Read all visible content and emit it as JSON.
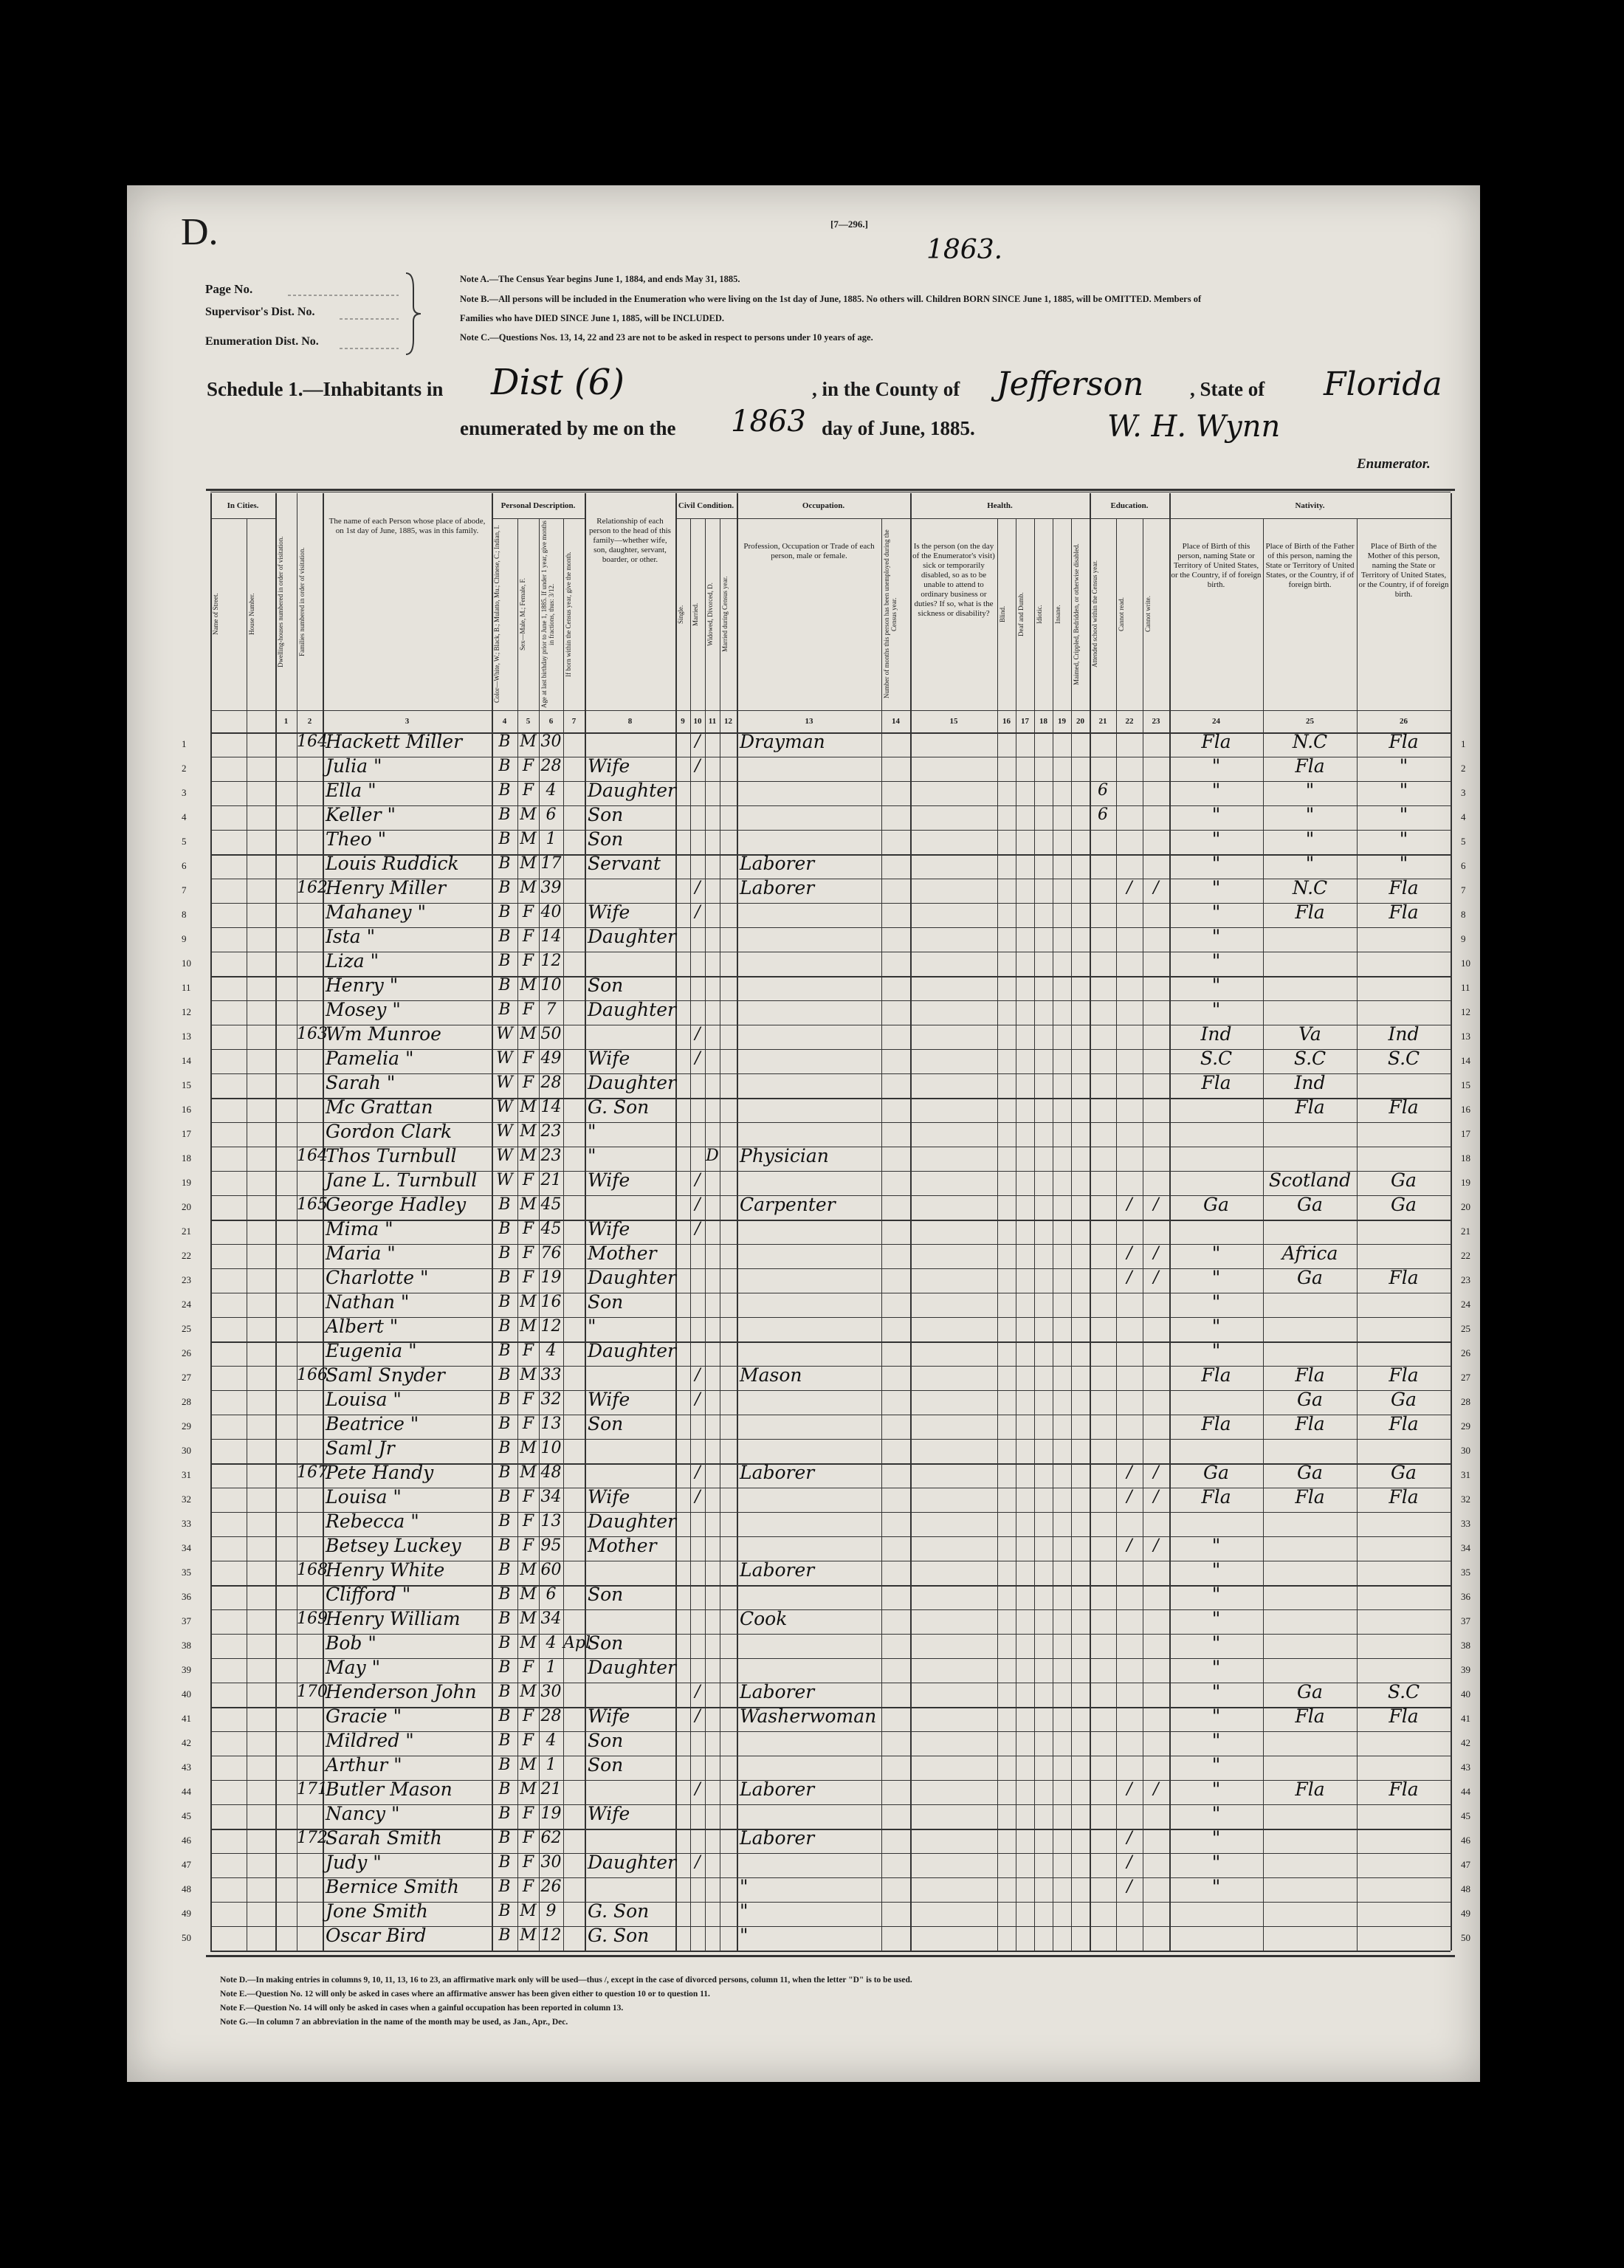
{
  "header": {
    "schedule_letter": "D.",
    "form_number": "[7—296.]",
    "handwritten_number": "1863.",
    "page_no": "Page No.",
    "supervisor_dist": "Supervisor's Dist. No.",
    "enumeration_dist": "Enumeration Dist. No.",
    "notes": [
      "Note A.—The Census Year begins June 1, 1884, and ends May 31, 1885.",
      "Note B.—All persons will be included in the Enumeration who were living on the 1st day of June, 1885. No others will. Children BORN SINCE June 1, 1885, will be OMITTED. Members of Families who have DIED SINCE June 1, 1885, will be INCLUDED.",
      "Note C.—Questions Nos. 13, 14, 22 and 23 are not to be asked in respect to persons under 10 years of age."
    ]
  },
  "schedule": {
    "label": "Schedule 1.—Inhabitants in",
    "district": "Dist (6)",
    "county_label": ", in the County of",
    "county": "Jefferson",
    "state_label": ", State of",
    "state": "Florida",
    "enumerated_label": "enumerated by me on the",
    "day": "1863",
    "month_label": "day of June, 1885.",
    "enumerator_signature": "W. H. Wynn",
    "enumerator_label": "Enumerator."
  },
  "table": {
    "groups": [
      {
        "label": "In Cities."
      },
      {
        "label": "Personal Description."
      },
      {
        "label": "Civil Condition."
      },
      {
        "label": "Occupation."
      },
      {
        "label": "Health."
      },
      {
        "label": "Education."
      },
      {
        "label": "Nativity."
      }
    ],
    "columns": [
      {
        "header": "Name of Street."
      },
      {
        "header": "House Number."
      },
      {
        "number": "1",
        "header": "Dwelling-houses numbered in order of visitation."
      },
      {
        "number": "2",
        "header": "Families numbered in order of visitation."
      },
      {
        "number": "3",
        "header": "The name of each Person whose place of abode, on 1st day of June, 1885, was in this family."
      },
      {
        "number": "4",
        "header": "Color—White, W.; Black, B.; Mulatto, Mu.; Chinese, C.; Indian, I."
      },
      {
        "number": "5",
        "header": "Sex—Male, M.; Female, F."
      },
      {
        "number": "6",
        "header": "Age at last birthday prior to June 1, 1885. If under 1 year, give months in fractions, thus: 3/12."
      },
      {
        "number": "7",
        "header": "If born within the Census year, give the month."
      },
      {
        "number": "8",
        "header": "Relationship of each person to the head of this family—whether wife, son, daughter, servant, boarder, or other."
      },
      {
        "number": "9",
        "header": "Single."
      },
      {
        "number": "10",
        "header": "Married."
      },
      {
        "number": "11",
        "header": "Widowed, Divorced, D."
      },
      {
        "number": "12",
        "header": "Married during Census year."
      },
      {
        "number": "13",
        "header": "Profession, Occupation or Trade of each person, male or female."
      },
      {
        "number": "14",
        "header": "Number of months this person has been unemployed during the Census year."
      },
      {
        "number": "15",
        "header": "Is the person (on the day of the Enumerator's visit) sick or temporarily disabled, so as to be unable to attend to ordinary business or duties? If so, what is the sickness or disability?"
      },
      {
        "number": "16",
        "header": "Blind."
      },
      {
        "number": "17",
        "header": "Deaf and Dumb."
      },
      {
        "number": "18",
        "header": "Idiotic."
      },
      {
        "number": "19",
        "header": "Insane."
      },
      {
        "number": "20",
        "header": "Maimed, Crippled, Bedridden, or otherwise disabled."
      },
      {
        "number": "21",
        "header": "Attended school within the Census year."
      },
      {
        "number": "22",
        "header": "Cannot read."
      },
      {
        "number": "23",
        "header": "Cannot write."
      },
      {
        "number": "24",
        "header": "Place of Birth of this person, naming State or Territory of United States, or the Country, if of foreign birth."
      },
      {
        "number": "25",
        "header": "Place of Birth of the Father of this person, naming the State or Territory of United States, or the Country, if of foreign birth."
      },
      {
        "number": "26",
        "header": "Place of Birth of the Mother of this person, naming the State or Territory of United States, or the Country, if of foreign birth."
      }
    ],
    "rows": [
      {
        "line": 1,
        "family": "164",
        "name": "Hackett Miller",
        "color": "B",
        "sex": "M",
        "age": "30",
        "married": "/",
        "occupation": "Drayman",
        "birthplace": "Fla",
        "father_birthplace": "N.C",
        "mother_birthplace": "Fla"
      },
      {
        "line": 2,
        "name": "Julia \"",
        "color": "B",
        "sex": "F",
        "age": "28",
        "relationship": "Wife",
        "married": "/",
        "birthplace": "\"",
        "father_birthplace": "Fla",
        "mother_birthplace": "\""
      },
      {
        "line": 3,
        "name": "Ella \"",
        "color": "B",
        "sex": "F",
        "age": "4",
        "relationship": "Daughter",
        "school": "6",
        "birthplace": "\"",
        "father_birthplace": "\"",
        "mother_birthplace": "\""
      },
      {
        "line": 4,
        "name": "Keller \"",
        "color": "B",
        "sex": "M",
        "age": "6",
        "relationship": "Son",
        "school": "6",
        "birthplace": "\"",
        "father_birthplace": "\"",
        "mother_birthplace": "\""
      },
      {
        "line": 5,
        "name": "Theo \"",
        "color": "B",
        "sex": "M",
        "age": "1",
        "relationship": "Son",
        "birthplace": "\"",
        "father_birthplace": "\"",
        "mother_birthplace": "\""
      },
      {
        "line": 6,
        "name": "Louis Ruddick",
        "color": "B",
        "sex": "M",
        "age": "17",
        "relationship": "Servant",
        "occupation": "Laborer",
        "birthplace": "\"",
        "father_birthplace": "\"",
        "mother_birthplace": "\""
      },
      {
        "line": 7,
        "family": "162",
        "name": "Henry Miller",
        "color": "B",
        "sex": "M",
        "age": "39",
        "married": "/",
        "occupation": "Laborer",
        "cannot_read": "/",
        "cannot_write": "/",
        "birthplace": "\"",
        "father_birthplace": "N.C",
        "mother_birthplace": "Fla"
      },
      {
        "line": 8,
        "name": "Mahaney \"",
        "color": "B",
        "sex": "F",
        "age": "40",
        "relationship": "Wife",
        "married": "/",
        "birthplace": "\"",
        "father_birthplace": "Fla",
        "mother_birthplace": "Fla"
      },
      {
        "line": 9,
        "name": "Ista \"",
        "color": "B",
        "sex": "F",
        "age": "14",
        "relationship": "Daughter",
        "birthplace": "\""
      },
      {
        "line": 10,
        "name": "Liza \"",
        "color": "B",
        "sex": "F",
        "age": "12",
        "birthplace": "\""
      },
      {
        "line": 11,
        "name": "Henry \"",
        "color": "B",
        "sex": "M",
        "age": "10",
        "relationship": "Son",
        "birthplace": "\""
      },
      {
        "line": 12,
        "name": "Mosey \"",
        "color": "B",
        "sex": "F",
        "age": "7",
        "relationship": "Daughter",
        "birthplace": "\""
      },
      {
        "line": 13,
        "family": "163",
        "name": "Wm Munroe",
        "color": "W",
        "sex": "M",
        "age": "50",
        "married": "/",
        "birthplace": "Ind",
        "father_birthplace": "Va",
        "mother_birthplace": "Ind"
      },
      {
        "line": 14,
        "name": "Pamelia \"",
        "color": "W",
        "sex": "F",
        "age": "49",
        "relationship": "Wife",
        "married": "/",
        "birthplace": "S.C",
        "father_birthplace": "S.C",
        "mother_birthplace": "S.C"
      },
      {
        "line": 15,
        "name": "Sarah \"",
        "color": "W",
        "sex": "F",
        "age": "28",
        "relationship": "Daughter",
        "birthplace": "Fla",
        "father_birthplace": "Ind"
      },
      {
        "line": 16,
        "name": "Mc Grattan",
        "color": "W",
        "sex": "M",
        "age": "14",
        "relationship": "G. Son",
        "father_birthplace": "Fla",
        "mother_birthplace": "Fla"
      },
      {
        "line": 17,
        "name": "Gordon Clark",
        "color": "W",
        "sex": "M",
        "age": "23",
        "relationship": "\""
      },
      {
        "line": 18,
        "family": "164",
        "name": "Thos Turnbull",
        "color": "W",
        "sex": "M",
        "age": "23",
        "relationship": "\"",
        "widowed": "D",
        "occupation": "Physician"
      },
      {
        "line": 19,
        "name": "Jane L. Turnbull",
        "color": "W",
        "sex": "F",
        "age": "21",
        "relationship": "Wife",
        "married": "/",
        "father_birthplace": "Scotland",
        "mother_birthplace": "Ga"
      },
      {
        "line": 20,
        "family": "165",
        "name": "George Hadley",
        "color": "B",
        "sex": "M",
        "age": "45",
        "married": "/",
        "occupation": "Carpenter",
        "cannot_read": "/",
        "cannot_write": "/",
        "birthplace": "Ga",
        "father_birthplace": "Ga",
        "mother_birthplace": "Ga"
      },
      {
        "line": 21,
        "name": "Mima \"",
        "color": "B",
        "sex": "F",
        "age": "45",
        "relationship": "Wife",
        "married": "/"
      },
      {
        "line": 22,
        "name": "Maria \"",
        "color": "B",
        "sex": "F",
        "age": "76",
        "relationship": "Mother",
        "cannot_read": "/",
        "cannot_write": "/",
        "birthplace": "\"",
        "father_birthplace": "Africa"
      },
      {
        "line": 23,
        "name": "Charlotte \"",
        "color": "B",
        "sex": "F",
        "age": "19",
        "relationship": "Daughter",
        "cannot_read": "/",
        "cannot_write": "/",
        "birthplace": "\"",
        "father_birthplace": "Ga",
        "mother_birthplace": "Fla"
      },
      {
        "line": 24,
        "name": "Nathan \"",
        "color": "B",
        "sex": "M",
        "age": "16",
        "relationship": "Son",
        "birthplace": "\""
      },
      {
        "line": 25,
        "name": "Albert \"",
        "color": "B",
        "sex": "M",
        "age": "12",
        "relationship": "\"",
        "birthplace": "\""
      },
      {
        "line": 26,
        "name": "Eugenia \"",
        "color": "B",
        "sex": "F",
        "age": "4",
        "relationship": "Daughter",
        "birthplace": "\""
      },
      {
        "line": 27,
        "family": "166",
        "name": "Saml Snyder",
        "color": "B",
        "sex": "M",
        "age": "33",
        "married": "/",
        "occupation": "Mason",
        "birthplace": "Fla",
        "father_birthplace": "Fla",
        "mother_birthplace": "Fla"
      },
      {
        "line": 28,
        "name": "Louisa \"",
        "color": "B",
        "sex": "F",
        "age": "32",
        "relationship": "Wife",
        "married": "/",
        "father_birthplace": "Ga",
        "mother_birthplace": "Ga"
      },
      {
        "line": 29,
        "name": "Beatrice \"",
        "color": "B",
        "sex": "F",
        "age": "13",
        "relationship": "Son",
        "birthplace": "Fla",
        "father_birthplace": "Fla",
        "mother_birthplace": "Fla"
      },
      {
        "line": 30,
        "name": "Saml Jr",
        "color": "B",
        "sex": "M",
        "age": "10"
      },
      {
        "line": 31,
        "family": "167",
        "name": "Pete Handy",
        "color": "B",
        "sex": "M",
        "age": "48",
        "married": "/",
        "occupation": "Laborer",
        "cannot_read": "/",
        "cannot_write": "/",
        "birthplace": "Ga",
        "father_birthplace": "Ga",
        "mother_birthplace": "Ga"
      },
      {
        "line": 32,
        "name": "Louisa \"",
        "color": "B",
        "sex": "F",
        "age": "34",
        "relationship": "Wife",
        "married": "/",
        "cannot_read": "/",
        "cannot_write": "/",
        "birthplace": "Fla",
        "father_birthplace": "Fla",
        "mother_birthplace": "Fla"
      },
      {
        "line": 33,
        "name": "Rebecca \"",
        "color": "B",
        "sex": "F",
        "age": "13",
        "relationship": "Daughter"
      },
      {
        "line": 34,
        "name": "Betsey Luckey",
        "color": "B",
        "sex": "F",
        "age": "95",
        "relationship": "Mother",
        "cannot_read": "/",
        "cannot_write": "/",
        "birthplace": "\""
      },
      {
        "line": 35,
        "family": "168",
        "name": "Henry White",
        "color": "B",
        "sex": "M",
        "age": "60",
        "occupation": "Laborer",
        "birthplace": "\""
      },
      {
        "line": 36,
        "name": "Clifford \"",
        "color": "B",
        "sex": "M",
        "age": "6",
        "relationship": "Son",
        "birthplace": "\""
      },
      {
        "line": 37,
        "family": "169",
        "name": "Henry William",
        "color": "B",
        "sex": "M",
        "age": "34",
        "occupation": "Cook",
        "birthplace": "\""
      },
      {
        "line": 38,
        "name": "Bob \"",
        "color": "B",
        "sex": "M",
        "age": "4",
        "month": "Apl",
        "relationship": "Son",
        "birthplace": "\""
      },
      {
        "line": 39,
        "name": "May \"",
        "color": "B",
        "sex": "F",
        "age": "1",
        "relationship": "Daughter",
        "birthplace": "\""
      },
      {
        "line": 40,
        "family": "170",
        "name": "Henderson John",
        "color": "B",
        "sex": "M",
        "age": "30",
        "married": "/",
        "occupation": "Laborer",
        "birthplace": "\"",
        "father_birthplace": "Ga",
        "mother_birthplace": "S.C"
      },
      {
        "line": 41,
        "name": "Gracie \"",
        "color": "B",
        "sex": "F",
        "age": "28",
        "relationship": "Wife",
        "married": "/",
        "occupation": "Washerwoman",
        "birthplace": "\"",
        "father_birthplace": "Fla",
        "mother_birthplace": "Fla"
      },
      {
        "line": 42,
        "name": "Mildred \"",
        "color": "B",
        "sex": "F",
        "age": "4",
        "relationship": "Son",
        "birthplace": "\""
      },
      {
        "line": 43,
        "name": "Arthur \"",
        "color": "B",
        "sex": "M",
        "age": "1",
        "relationship": "Son",
        "birthplace": "\""
      },
      {
        "line": 44,
        "family": "171",
        "name": "Butler Mason",
        "color": "B",
        "sex": "M",
        "age": "21",
        "married": "/",
        "occupation": "Laborer",
        "cannot_read": "/",
        "cannot_write": "/",
        "birthplace": "\"",
        "father_birthplace": "Fla",
        "mother_birthplace": "Fla"
      },
      {
        "line": 45,
        "name": "Nancy \"",
        "color": "B",
        "sex": "F",
        "age": "19",
        "relationship": "Wife",
        "birthplace": "\""
      },
      {
        "line": 46,
        "family": "172",
        "name": "Sarah Smith",
        "color": "B",
        "sex": "F",
        "age": "62",
        "occupation": "Laborer",
        "cannot_read": "/",
        "birthplace": "\""
      },
      {
        "line": 47,
        "name": "Judy \"",
        "color": "B",
        "sex": "F",
        "age": "30",
        "relationship": "Daughter",
        "married": "/",
        "cannot_read": "/",
        "birthplace": "\""
      },
      {
        "line": 48,
        "name": "Bernice Smith",
        "color": "B",
        "sex": "F",
        "age": "26",
        "occupation": "\"",
        "cannot_read": "/",
        "birthplace": "\""
      },
      {
        "line": 49,
        "name": "Jone Smith",
        "color": "B",
        "sex": "M",
        "age": "9",
        "relationship": "G. Son",
        "occupation": "\""
      },
      {
        "line": 50,
        "name": "Oscar Bird",
        "color": "B",
        "sex": "M",
        "age": "12",
        "relationship": "G. Son",
        "occupation": "\""
      }
    ]
  },
  "footnotes": [
    "Note D.—In making entries in columns 9, 10, 11, 13, 16 to 23, an affirmative mark only will be used—thus /, except in the case of divorced persons, column 11, when the letter \"D\" is to be used.",
    "Note E.—Question No. 12 will only be asked in cases where an affirmative answer has been given either to question 10 or to question 11.",
    "Note F.—Question No. 14 will only be asked in cases when a gainful occupation has been reported in column 13.",
    "Note G.—In column 7 an abbreviation in the name of the month may be used, as Jan., Apr., Dec."
  ]
}
